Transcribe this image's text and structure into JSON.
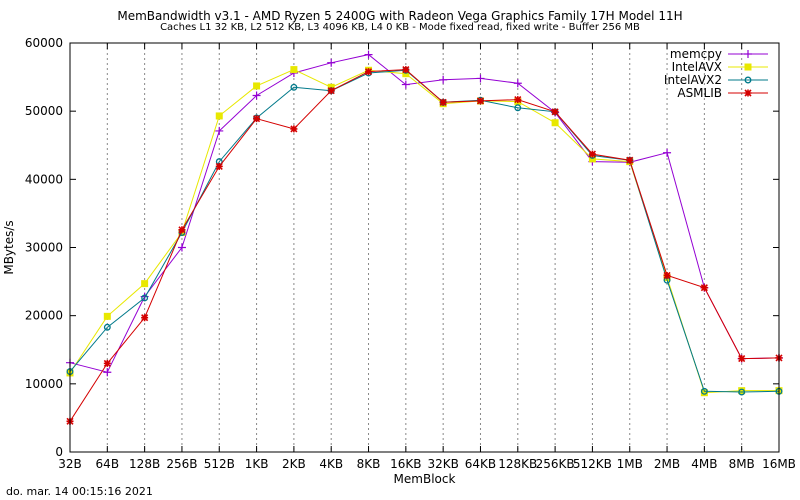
{
  "title": "MemBandwidth v3.1 - AMD Ryzen 5 2400G with Radeon Vega Graphics      Family 17H Model 11H",
  "subtitle": "Caches L1 32 KB, L2 512 KB, L3 4096 KB, L4 0 KB - Mode fixed read, fixed write - Buffer 256 MB",
  "timestamp": "do. mar. 14 00:15:16 2021",
  "chart_data": {
    "type": "line",
    "xlabel": "MemBlock",
    "ylabel": "MBytes/s",
    "ylim": [
      0,
      60000
    ],
    "yticks": [
      0,
      10000,
      20000,
      30000,
      40000,
      50000,
      60000
    ],
    "categories": [
      "32B",
      "64B",
      "128B",
      "256B",
      "512B",
      "1KB",
      "2KB",
      "4KB",
      "8KB",
      "16KB",
      "32KB",
      "64KB",
      "128KB",
      "256KB",
      "512KB",
      "1MB",
      "2MB",
      "4MB",
      "8MB",
      "16MB"
    ],
    "grid": "vertical dotted lines at each category",
    "legend_position": "top-right",
    "series": [
      {
        "name": "memcpy",
        "color": "#9400d3",
        "marker": "plus",
        "values": [
          13100,
          11700,
          22800,
          30000,
          47100,
          52300,
          55600,
          57100,
          58300,
          53900,
          54600,
          54800,
          54100,
          49800,
          42600,
          42500,
          43900,
          24100,
          13700,
          13800
        ]
      },
      {
        "name": "IntelAVX",
        "color": "#e8e800",
        "marker": "square",
        "values": [
          11600,
          19900,
          24700,
          32200,
          49300,
          53700,
          56100,
          53500,
          56000,
          55500,
          51100,
          51500,
          51400,
          48300,
          43000,
          42600,
          25600,
          8700,
          9000,
          9000
        ]
      },
      {
        "name": "IntelAVX2",
        "color": "#00798a",
        "marker": "circle",
        "values": [
          11800,
          18300,
          22600,
          32200,
          42600,
          49000,
          53500,
          53000,
          55600,
          56000,
          51300,
          51600,
          50500,
          49900,
          43500,
          42800,
          25200,
          8900,
          8800,
          8900
        ]
      },
      {
        "name": "ASMLIB",
        "color": "#d40000",
        "marker": "star",
        "values": [
          4500,
          13000,
          19700,
          32600,
          41900,
          48900,
          47400,
          53000,
          55800,
          56100,
          51300,
          51500,
          51700,
          49900,
          43700,
          42800,
          25900,
          24100,
          13700,
          13800
        ]
      }
    ]
  }
}
